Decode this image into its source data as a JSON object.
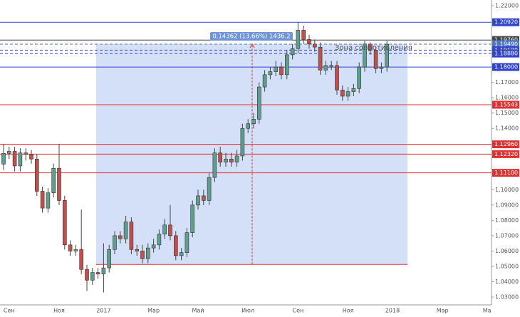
{
  "chart_data": {
    "type": "candlestick",
    "categories": [
      null,
      "Сен",
      null,
      null,
      null,
      null,
      null,
      null,
      null,
      null,
      "Ноя",
      null,
      null,
      null,
      null,
      null,
      null,
      null,
      "2017",
      null,
      null,
      null,
      null,
      null,
      null,
      null,
      null,
      "Мар",
      null,
      null,
      null,
      null,
      null,
      null,
      null,
      "Май",
      null,
      null,
      null,
      null,
      null,
      null,
      null,
      null,
      "Июл",
      null,
      null,
      null,
      null,
      null,
      null,
      null,
      null,
      "Сен",
      null,
      null,
      null,
      null,
      null,
      null,
      null,
      null,
      "Ноя",
      null,
      null,
      null,
      null,
      null,
      null,
      null,
      "2018",
      null,
      null,
      null,
      null,
      null,
      null,
      null,
      null,
      "Мар",
      null,
      null,
      null,
      null,
      null,
      null,
      null,
      "Ма"
    ],
    "open": [
      1.1167,
      1.1237,
      1.125,
      1.1155,
      1.124,
      1.123,
      1.12,
      1.099,
      1.088,
      1.098,
      1.114,
      1.093,
      1.064,
      1.06,
      1.061,
      1.048,
      1.041,
      1.046,
      1.045,
      1.049,
      1.061,
      1.07,
      1.068,
      1.079,
      1.061,
      1.06,
      1.055,
      1.062,
      1.064,
      1.071,
      1.077,
      1.07,
      1.057,
      1.059,
      1.072,
      1.09,
      1.096,
      1.093,
      1.108,
      1.124,
      1.118,
      1.12,
      1.118,
      1.122,
      1.14,
      1.143,
      1.146,
      1.167,
      1.175,
      1.177,
      1.18,
      1.175,
      1.188,
      1.192,
      1.204,
      1.198,
      1.195,
      1.193,
      1.178,
      1.181,
      1.181,
      1.165,
      1.161,
      1.164,
      1.166,
      1.18,
      1.195,
      1.191,
      1.179,
      1.18,
      null,
      null,
      null,
      null,
      null,
      null,
      null,
      null,
      null,
      null,
      null,
      null,
      null,
      null,
      null,
      null,
      null,
      null
    ],
    "high": [
      1.13,
      1.128,
      1.128,
      1.127,
      1.127,
      1.126,
      1.123,
      1.102,
      1.101,
      1.117,
      1.13,
      1.096,
      1.067,
      1.064,
      1.087,
      1.051,
      1.049,
      1.049,
      1.065,
      1.064,
      1.073,
      1.073,
      1.083,
      1.082,
      1.064,
      1.064,
      1.065,
      1.068,
      1.074,
      1.081,
      1.09,
      1.073,
      1.062,
      1.075,
      1.093,
      1.1,
      1.1,
      1.111,
      1.127,
      1.128,
      1.124,
      1.124,
      1.126,
      1.143,
      1.146,
      1.15,
      1.17,
      1.178,
      1.18,
      1.184,
      1.183,
      1.191,
      1.195,
      1.2092,
      1.207,
      1.201,
      1.198,
      1.196,
      1.184,
      1.184,
      1.184,
      1.168,
      1.167,
      1.169,
      1.183,
      1.197,
      1.196,
      1.193,
      1.183,
      1.197,
      null,
      null,
      null,
      null,
      null,
      null,
      null,
      null,
      null,
      null,
      null,
      null,
      null,
      null,
      null,
      null,
      null,
      null
    ],
    "low": [
      1.113,
      1.12,
      1.112,
      1.112,
      1.119,
      1.117,
      1.096,
      1.085,
      1.085,
      1.095,
      1.09,
      1.061,
      1.057,
      1.057,
      1.045,
      1.034,
      1.038,
      1.042,
      1.033,
      1.046,
      1.058,
      1.065,
      1.065,
      1.058,
      1.057,
      1.052,
      1.052,
      1.059,
      1.061,
      1.068,
      1.067,
      1.054,
      1.054,
      1.056,
      1.069,
      1.087,
      1.09,
      1.09,
      1.105,
      1.115,
      1.115,
      1.115,
      1.115,
      1.119,
      1.137,
      1.14,
      1.143,
      1.164,
      1.172,
      1.174,
      1.172,
      1.172,
      1.185,
      1.189,
      1.195,
      1.192,
      1.19,
      1.175,
      1.175,
      1.178,
      1.162,
      1.158,
      1.158,
      1.161,
      1.163,
      1.177,
      1.188,
      1.176,
      1.176,
      1.177,
      null,
      null,
      null,
      null,
      null,
      null,
      null,
      null,
      null,
      null,
      null,
      null,
      null,
      null,
      null,
      null,
      null,
      null
    ],
    "close": [
      1.1237,
      1.125,
      1.1155,
      1.124,
      1.123,
      1.12,
      1.099,
      1.088,
      1.098,
      1.114,
      1.093,
      1.064,
      1.06,
      1.061,
      1.048,
      1.041,
      1.046,
      1.045,
      1.049,
      1.061,
      1.07,
      1.068,
      1.079,
      1.061,
      1.06,
      1.055,
      1.062,
      1.064,
      1.071,
      1.077,
      1.07,
      1.057,
      1.059,
      1.072,
      1.09,
      1.096,
      1.093,
      1.108,
      1.124,
      1.118,
      1.12,
      1.118,
      1.122,
      1.14,
      1.143,
      1.146,
      1.167,
      1.175,
      1.177,
      1.18,
      1.175,
      1.188,
      1.192,
      1.204,
      1.198,
      1.195,
      1.193,
      1.178,
      1.181,
      1.181,
      1.165,
      1.161,
      1.164,
      1.166,
      1.18,
      1.195,
      1.191,
      1.179,
      1.18,
      1.1949,
      null,
      null,
      null,
      null,
      null,
      null,
      null,
      null,
      null,
      null,
      null,
      null,
      null,
      null,
      null,
      null,
      null,
      null
    ],
    "up_color": "#5f9e8f",
    "down_color": "#c0504d",
    "ylim": [
      1.03,
      1.22
    ],
    "yticks": [
      {
        "value": 1.22,
        "label": "1.22000"
      },
      {
        "value": 1.18,
        "label": "1.18000"
      },
      {
        "value": 1.17,
        "label": "1.17000"
      },
      {
        "value": 1.16,
        "label": "1.16000"
      },
      {
        "value": 1.15,
        "label": "1.15000"
      },
      {
        "value": 1.14,
        "label": "1.14000"
      },
      {
        "value": 1.1,
        "label": "1.10000"
      },
      {
        "value": 1.09,
        "label": "1.09000"
      },
      {
        "value": 1.08,
        "label": "1.08000"
      },
      {
        "value": 1.07,
        "label": "1.07000"
      },
      {
        "value": 1.06,
        "label": "1.06000"
      },
      {
        "value": 1.05,
        "label": "1.05000"
      },
      {
        "value": 1.04,
        "label": "1.04000"
      },
      {
        "value": 1.03,
        "label": "1.03000"
      }
    ],
    "levels": [
      {
        "value": 1.2092,
        "label": "1.20920",
        "color": "#3344cc",
        "dash": false
      },
      {
        "value": 1.1976,
        "label": "1.19760",
        "color": "#444444",
        "dash": false
      },
      {
        "value": 1.1949,
        "label": "1.19490",
        "color": "#4a78c8",
        "dash": true
      },
      {
        "value": 1.191,
        "label": "1.19100",
        "color": "#3344cc",
        "dash": true
      },
      {
        "value": 1.1888,
        "label": "1.18880",
        "color": "#3344cc",
        "dash": true
      },
      {
        "value": 1.18,
        "label": "1.18000",
        "color": "#3344cc",
        "dash": false
      },
      {
        "value": 1.15543,
        "label": "1.15543",
        "color": "#e03030",
        "dash": false
      },
      {
        "value": 1.1296,
        "label": "1.12960",
        "color": "#e03030",
        "dash": false
      },
      {
        "value": 1.1232,
        "label": "1.12320",
        "color": "#e03030",
        "dash": false
      },
      {
        "value": 1.111,
        "label": "1.11100",
        "color": "#e03030",
        "dash": false
      }
    ],
    "zone": {
      "top": 1.1949,
      "bottom": 1.05128,
      "label": "0.14362 (13.66%) 1436.2",
      "color": "#6f95e8"
    },
    "annotation": "Зона сопротивления"
  }
}
